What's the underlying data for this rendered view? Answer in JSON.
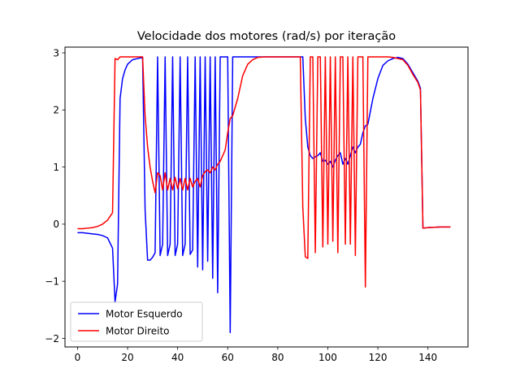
{
  "chart_data": {
    "type": "line",
    "title": "Velocidade dos motores (rad/s) por iteração",
    "xlabel": "",
    "ylabel": "",
    "xlim": [
      -5,
      156
    ],
    "ylim": [
      -2.15,
      3.1
    ],
    "xticks": [
      0,
      20,
      40,
      60,
      80,
      100,
      120,
      140
    ],
    "yticks": [
      -2,
      -1,
      0,
      1,
      2,
      3
    ],
    "grid": false,
    "legend_position": "lower-left",
    "series": [
      {
        "name": "Motor Esquerdo",
        "color": "#0000ff",
        "points": [
          [
            0,
            -0.15
          ],
          [
            2,
            -0.15
          ],
          [
            4,
            -0.16
          ],
          [
            6,
            -0.17
          ],
          [
            8,
            -0.18
          ],
          [
            10,
            -0.2
          ],
          [
            12,
            -0.24
          ],
          [
            14,
            -0.42
          ],
          [
            15,
            -1.36
          ],
          [
            16,
            -1.05
          ],
          [
            17,
            2.2
          ],
          [
            18,
            2.55
          ],
          [
            19,
            2.7
          ],
          [
            20,
            2.8
          ],
          [
            22,
            2.88
          ],
          [
            24,
            2.9
          ],
          [
            26,
            2.92
          ],
          [
            27,
            0.25
          ],
          [
            28,
            -0.63
          ],
          [
            29,
            -0.63
          ],
          [
            30,
            -0.58
          ],
          [
            31,
            -0.5
          ],
          [
            32,
            2.93
          ],
          [
            33,
            -0.55
          ],
          [
            34,
            -0.35
          ],
          [
            35,
            2.93
          ],
          [
            36,
            -0.55
          ],
          [
            37,
            -0.35
          ],
          [
            38,
            2.93
          ],
          [
            39,
            -0.55
          ],
          [
            40,
            -0.35
          ],
          [
            41,
            2.93
          ],
          [
            42,
            -0.55
          ],
          [
            43,
            -0.35
          ],
          [
            44,
            2.93
          ],
          [
            45,
            -0.53
          ],
          [
            46,
            -0.45
          ],
          [
            47,
            2.93
          ],
          [
            48,
            -0.75
          ],
          [
            49,
            2.93
          ],
          [
            50,
            -0.8
          ],
          [
            51,
            2.93
          ],
          [
            52,
            -0.65
          ],
          [
            53,
            2.93
          ],
          [
            54,
            -0.95
          ],
          [
            55,
            2.93
          ],
          [
            56,
            -1.2
          ],
          [
            57,
            2.93
          ],
          [
            58,
            2.93
          ],
          [
            59,
            2.93
          ],
          [
            60,
            2.93
          ],
          [
            61,
            -1.9
          ],
          [
            62,
            2.93
          ],
          [
            64,
            2.93
          ],
          [
            66,
            2.93
          ],
          [
            68,
            2.93
          ],
          [
            70,
            2.93
          ],
          [
            72,
            2.93
          ],
          [
            80,
            2.93
          ],
          [
            88,
            2.93
          ],
          [
            90,
            2.93
          ],
          [
            91,
            1.85
          ],
          [
            92,
            1.35
          ],
          [
            93,
            1.2
          ],
          [
            94,
            1.15
          ],
          [
            95,
            1.18
          ],
          [
            96,
            1.2
          ],
          [
            97,
            1.25
          ],
          [
            98,
            1.1
          ],
          [
            99,
            1.12
          ],
          [
            100,
            1.05
          ],
          [
            101,
            1.1
          ],
          [
            102,
            1.0
          ],
          [
            103,
            1.12
          ],
          [
            104,
            1.2
          ],
          [
            105,
            1.25
          ],
          [
            106,
            1.05
          ],
          [
            107,
            1.15
          ],
          [
            108,
            1.05
          ],
          [
            109,
            1.2
          ],
          [
            110,
            1.35
          ],
          [
            111,
            1.25
          ],
          [
            112,
            1.35
          ],
          [
            113,
            1.4
          ],
          [
            114,
            1.6
          ],
          [
            115,
            1.72
          ],
          [
            116,
            1.75
          ],
          [
            118,
            2.2
          ],
          [
            120,
            2.55
          ],
          [
            122,
            2.78
          ],
          [
            124,
            2.86
          ],
          [
            126,
            2.9
          ],
          [
            128,
            2.92
          ],
          [
            130,
            2.9
          ],
          [
            132,
            2.8
          ],
          [
            134,
            2.65
          ],
          [
            136,
            2.5
          ],
          [
            137,
            2.38
          ],
          [
            138,
            -0.07
          ],
          [
            140,
            -0.06
          ],
          [
            145,
            -0.05
          ],
          [
            149,
            -0.05
          ]
        ]
      },
      {
        "name": "Motor Direito",
        "color": "#ff0000",
        "points": [
          [
            0,
            -0.08
          ],
          [
            2,
            -0.08
          ],
          [
            4,
            -0.07
          ],
          [
            6,
            -0.06
          ],
          [
            8,
            -0.04
          ],
          [
            10,
            0.0
          ],
          [
            12,
            0.07
          ],
          [
            14,
            0.2
          ],
          [
            15,
            2.9
          ],
          [
            16,
            2.88
          ],
          [
            17,
            2.93
          ],
          [
            18,
            2.93
          ],
          [
            20,
            2.93
          ],
          [
            22,
            2.93
          ],
          [
            24,
            2.93
          ],
          [
            26,
            2.93
          ],
          [
            27,
            1.9
          ],
          [
            28,
            1.35
          ],
          [
            29,
            1.0
          ],
          [
            30,
            0.75
          ],
          [
            31,
            0.55
          ],
          [
            32,
            0.9
          ],
          [
            33,
            0.85
          ],
          [
            34,
            0.6
          ],
          [
            35,
            0.9
          ],
          [
            36,
            0.6
          ],
          [
            37,
            0.8
          ],
          [
            38,
            0.6
          ],
          [
            39,
            0.82
          ],
          [
            40,
            0.62
          ],
          [
            41,
            0.8
          ],
          [
            42,
            0.6
          ],
          [
            43,
            0.8
          ],
          [
            44,
            0.6
          ],
          [
            45,
            0.8
          ],
          [
            46,
            0.65
          ],
          [
            47,
            0.75
          ],
          [
            48,
            0.8
          ],
          [
            49,
            0.65
          ],
          [
            50,
            0.85
          ],
          [
            51,
            0.92
          ],
          [
            52,
            0.95
          ],
          [
            53,
            0.9
          ],
          [
            54,
            1.0
          ],
          [
            55,
            0.95
          ],
          [
            56,
            1.05
          ],
          [
            57,
            1.1
          ],
          [
            58,
            1.2
          ],
          [
            59,
            1.3
          ],
          [
            60,
            1.6
          ],
          [
            61,
            1.85
          ],
          [
            62,
            1.9
          ],
          [
            64,
            2.2
          ],
          [
            66,
            2.6
          ],
          [
            68,
            2.8
          ],
          [
            70,
            2.88
          ],
          [
            72,
            2.92
          ],
          [
            75,
            2.93
          ],
          [
            80,
            2.93
          ],
          [
            88,
            2.93
          ],
          [
            89,
            2.93
          ],
          [
            90,
            0.3
          ],
          [
            91,
            -0.57
          ],
          [
            92,
            -0.6
          ],
          [
            93,
            2.93
          ],
          [
            94,
            2.93
          ],
          [
            95,
            -0.5
          ],
          [
            96,
            2.93
          ],
          [
            97,
            2.93
          ],
          [
            98,
            -0.4
          ],
          [
            99,
            2.93
          ],
          [
            100,
            -0.35
          ],
          [
            101,
            2.93
          ],
          [
            102,
            -0.3
          ],
          [
            103,
            2.93
          ],
          [
            104,
            -0.5
          ],
          [
            105,
            2.93
          ],
          [
            106,
            2.93
          ],
          [
            107,
            -0.35
          ],
          [
            108,
            2.93
          ],
          [
            109,
            -0.35
          ],
          [
            110,
            2.93
          ],
          [
            111,
            -0.55
          ],
          [
            112,
            2.93
          ],
          [
            113,
            2.93
          ],
          [
            114,
            2.93
          ],
          [
            115,
            -1.1
          ],
          [
            116,
            2.93
          ],
          [
            118,
            2.93
          ],
          [
            120,
            2.93
          ],
          [
            122,
            2.93
          ],
          [
            124,
            2.93
          ],
          [
            126,
            2.92
          ],
          [
            128,
            2.9
          ],
          [
            130,
            2.88
          ],
          [
            132,
            2.78
          ],
          [
            134,
            2.62
          ],
          [
            136,
            2.48
          ],
          [
            137,
            2.35
          ],
          [
            138,
            -0.07
          ],
          [
            140,
            -0.06
          ],
          [
            145,
            -0.05
          ],
          [
            149,
            -0.05
          ]
        ]
      }
    ]
  }
}
